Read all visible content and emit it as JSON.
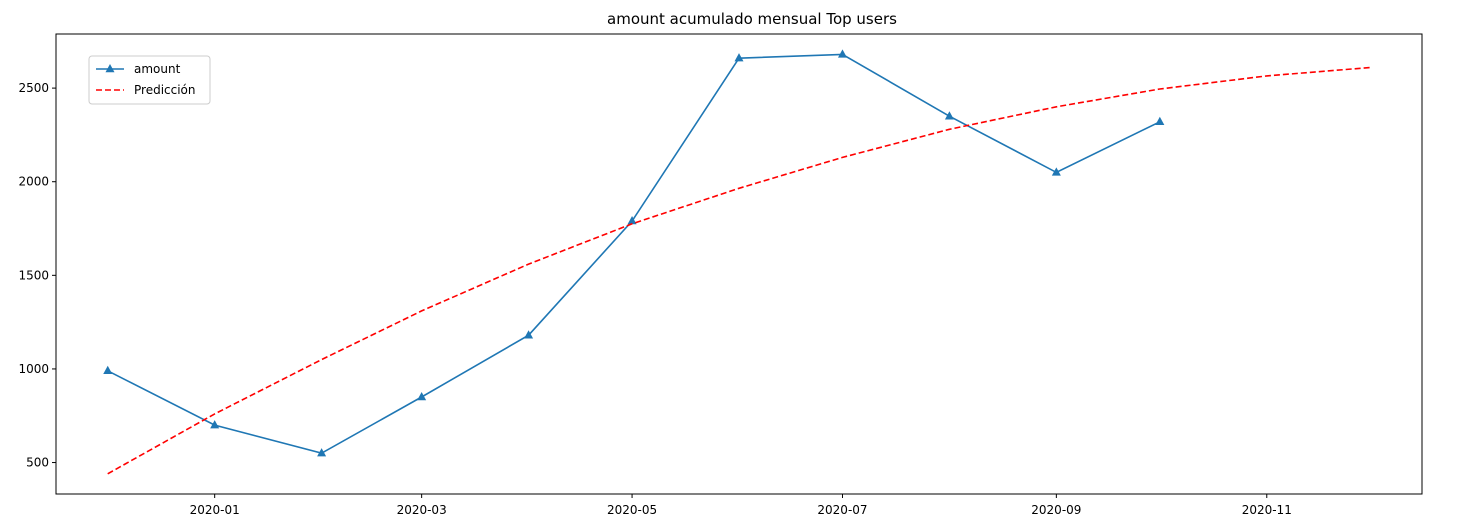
{
  "chart_data": {
    "type": "line",
    "title": "amount acumulado mensual Top users",
    "xlabel": "",
    "ylabel": "",
    "x_ticks": [
      "2020-01",
      "2020-03",
      "2020-05",
      "2020-07",
      "2020-09",
      "2020-11"
    ],
    "y_ticks": [
      500,
      1000,
      1500,
      2000,
      2500
    ],
    "grid": false,
    "legend_position": "top-left",
    "series": [
      {
        "name": "amount",
        "style": "solid",
        "marker": "triangle",
        "color": "#1f77b4",
        "points": [
          {
            "x": "2019-12-01",
            "y": 990
          },
          {
            "x": "2020-01-01",
            "y": 700
          },
          {
            "x": "2020-02-01",
            "y": 550
          },
          {
            "x": "2020-03-01",
            "y": 850
          },
          {
            "x": "2020-04-01",
            "y": 1180
          },
          {
            "x": "2020-05-01",
            "y": 1790
          },
          {
            "x": "2020-06-01",
            "y": 2660
          },
          {
            "x": "2020-07-01",
            "y": 2680
          },
          {
            "x": "2020-08-01",
            "y": 2350
          },
          {
            "x": "2020-09-01",
            "y": 2050
          },
          {
            "x": "2020-10-01",
            "y": 2320
          }
        ]
      },
      {
        "name": "Predicción",
        "style": "dashed",
        "marker": "none",
        "color": "#ff0000",
        "points": [
          {
            "x": "2019-12-01",
            "y": 440
          },
          {
            "x": "2020-01-01",
            "y": 760
          },
          {
            "x": "2020-02-01",
            "y": 1050
          },
          {
            "x": "2020-03-01",
            "y": 1310
          },
          {
            "x": "2020-04-01",
            "y": 1560
          },
          {
            "x": "2020-05-01",
            "y": 1775
          },
          {
            "x": "2020-06-01",
            "y": 1965
          },
          {
            "x": "2020-07-01",
            "y": 2130
          },
          {
            "x": "2020-08-01",
            "y": 2280
          },
          {
            "x": "2020-09-01",
            "y": 2400
          },
          {
            "x": "2020-10-01",
            "y": 2495
          },
          {
            "x": "2020-11-01",
            "y": 2565
          },
          {
            "x": "2020-12-01",
            "y": 2610
          }
        ]
      }
    ]
  }
}
